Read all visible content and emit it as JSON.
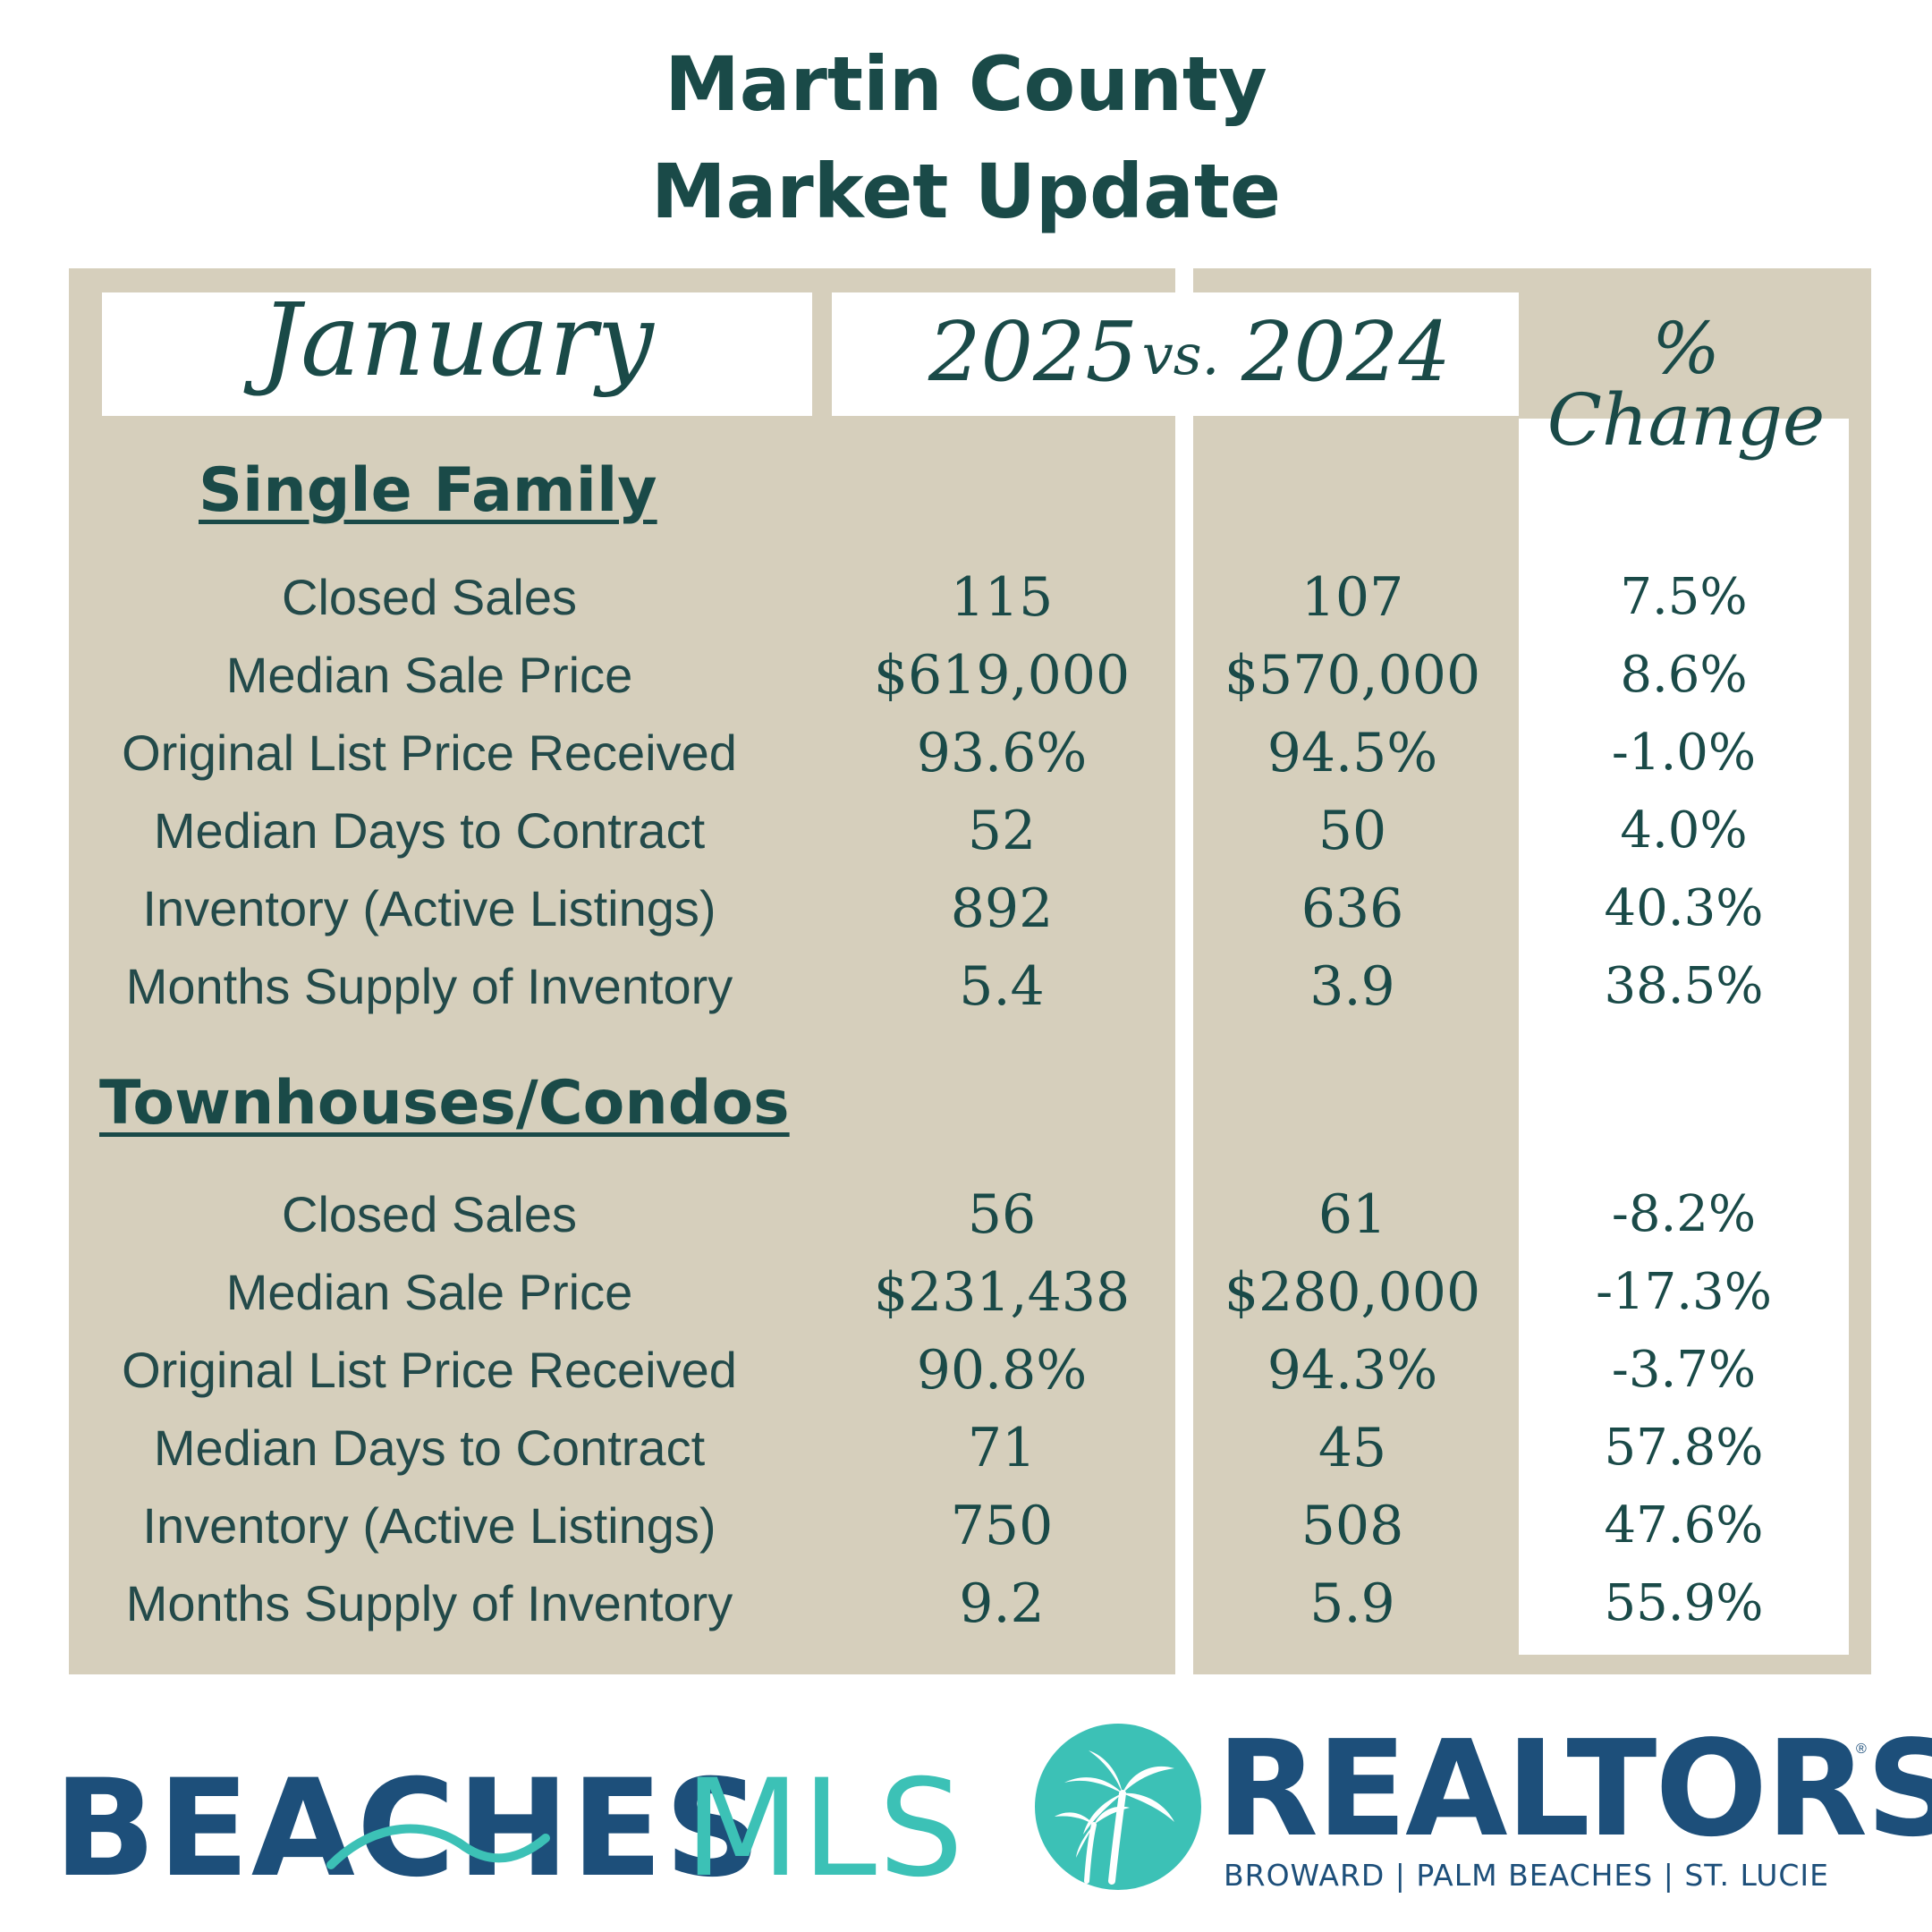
{
  "title": {
    "line1": "Martin County",
    "line2": "Market Update"
  },
  "header": {
    "month": "January",
    "year_current": "2025",
    "vs": "vs.",
    "year_prior": "2024",
    "change_label": "% Change"
  },
  "sections": [
    {
      "title": "Single Family",
      "rows": [
        {
          "metric": "Closed Sales",
          "current": "115",
          "prior": "107",
          "change": "7.5%"
        },
        {
          "metric": "Median Sale Price",
          "current": "$619,000",
          "prior": "$570,000",
          "change": "8.6%"
        },
        {
          "metric": "Original List Price Received",
          "current": "93.6%",
          "prior": "94.5%",
          "change": "-1.0%"
        },
        {
          "metric": "Median Days to Contract",
          "current": "52",
          "prior": "50",
          "change": "4.0%"
        },
        {
          "metric": "Inventory (Active Listings)",
          "current": "892",
          "prior": "636",
          "change": "40.3%"
        },
        {
          "metric": "Months Supply of Inventory",
          "current": "5.4",
          "prior": "3.9",
          "change": "38.5%"
        }
      ]
    },
    {
      "title": "Townhouses/Condos",
      "rows": [
        {
          "metric": "Closed Sales",
          "current": "56",
          "prior": "61",
          "change": "-8.2%"
        },
        {
          "metric": "Median Sale Price",
          "current": "$231,438",
          "prior": "$280,000",
          "change": "-17.3%"
        },
        {
          "metric": "Original List Price Received",
          "current": "90.8%",
          "prior": "94.3%",
          "change": "-3.7%"
        },
        {
          "metric": "Median Days to Contract",
          "current": "71",
          "prior": "45",
          "change": "57.8%"
        },
        {
          "metric": "Inventory (Active Listings)",
          "current": "750",
          "prior": "508",
          "change": "47.6%"
        },
        {
          "metric": "Months Supply of Inventory",
          "current": "9.2",
          "prior": "5.9",
          "change": "55.9%"
        }
      ]
    }
  ],
  "logos": {
    "beaches": {
      "word": "BEACHES",
      "suffix": "MLS",
      "color_primary": "#1d4f7a",
      "color_accent": "#3cc1b6"
    },
    "realtors": {
      "word": "REALTORS",
      "reg": "®",
      "tagline": "BROWARD | PALM BEACHES | ST. LUCIE",
      "color": "#1d4f7a",
      "circle_color": "#3cc1b6"
    }
  },
  "colors": {
    "panel": "#d6cfbc",
    "text_dark": "#1a4a48"
  }
}
